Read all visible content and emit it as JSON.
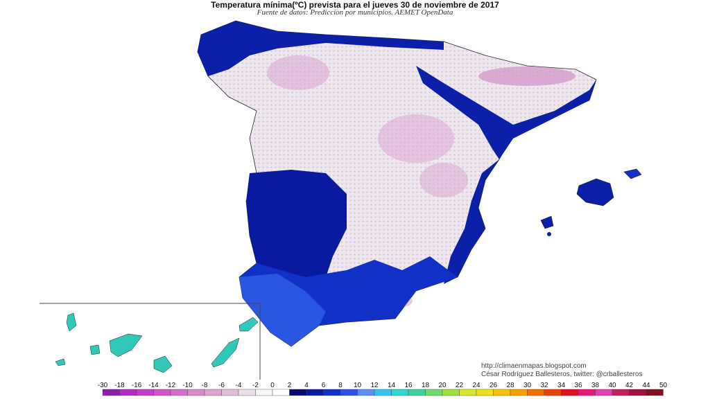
{
  "header": {
    "title": "Temperatura mínima(ºC) prevista para el jueves 30 de noviembre de 2017",
    "subtitle": "Fuente de datos: Prediccion por municipios. AEMET OpenData"
  },
  "credits": {
    "blog": "http://climaenmapas.blogspot.com",
    "author": "César Rodríguez Ballesteros, twitter: @crballesteros"
  },
  "legend": {
    "unit": "ºC",
    "ticks": [
      "-30",
      "-18",
      "-16",
      "-14",
      "-12",
      "-10",
      "-8",
      "-6",
      "-4",
      "-2",
      "0",
      "2",
      "4",
      "6",
      "8",
      "10",
      "12",
      "14",
      "16",
      "18",
      "20",
      "22",
      "24",
      "26",
      "28",
      "30",
      "32",
      "34",
      "36",
      "38",
      "40",
      "42",
      "44",
      "50"
    ],
    "colors": [
      "#8a1fa8",
      "#b02dc0",
      "#c23fcb",
      "#cc55c8",
      "#d56fcc",
      "#d98ac9",
      "#dca4ce",
      "#e2bfd9",
      "#ece0e8",
      "#f7f7f7",
      "#ffffff",
      "#0a0a6e",
      "#0a1aa0",
      "#1030c8",
      "#3050e0",
      "#5b8ff0",
      "#38c0f0",
      "#30d8d0",
      "#40d0a0",
      "#70d870",
      "#a0e040",
      "#d8e830",
      "#f0e020",
      "#f8c010",
      "#f8a000",
      "#f07000",
      "#e84010",
      "#e01020",
      "#e81878",
      "#e040b0",
      "#c02060",
      "#a01040",
      "#801020"
    ]
  },
  "map": {
    "region": "España",
    "inset": "Canarias",
    "dominant_colors": {
      "cold_interior": "#e8d8e6",
      "frost_pink": "#d59acb",
      "mild_coast": "#0b1fa8",
      "warm_south": "#2a55e0",
      "canarias": "#30c8b8"
    }
  }
}
